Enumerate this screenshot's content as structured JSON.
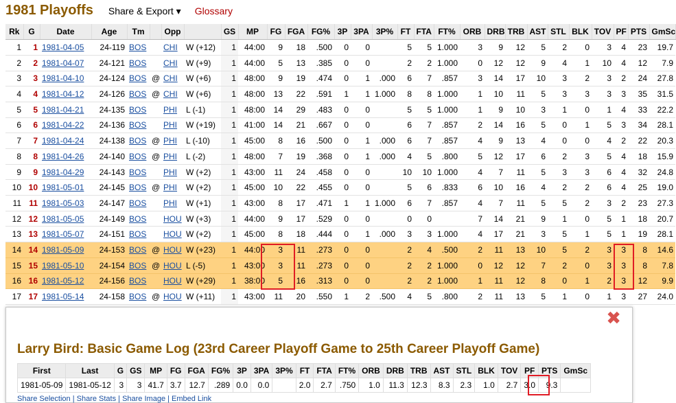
{
  "header": {
    "title": "1981 Playoffs",
    "share_label": "Share & Export ▾",
    "glossary_label": "Glossary"
  },
  "columns": [
    "Rk",
    "G",
    "Date",
    "Age",
    "Tm",
    "",
    "Opp",
    "",
    "GS",
    "MP",
    "FG",
    "FGA",
    "FG%",
    "3P",
    "3PA",
    "3P%",
    "FT",
    "FTA",
    "FT%",
    "ORB",
    "DRB",
    "TRB",
    "AST",
    "STL",
    "BLK",
    "TOV",
    "PF",
    "PTS",
    "GmSc"
  ],
  "rows": [
    [
      "1",
      "1",
      "1981-04-05",
      "24-119",
      "BOS",
      "",
      "CHI",
      "W (+12)",
      "1",
      "44:00",
      "9",
      "18",
      ".500",
      "0",
      "0",
      "",
      "5",
      "5",
      "1.000",
      "3",
      "9",
      "12",
      "5",
      "2",
      "0",
      "3",
      "4",
      "23",
      "19.7"
    ],
    [
      "2",
      "2",
      "1981-04-07",
      "24-121",
      "BOS",
      "",
      "CHI",
      "W (+9)",
      "1",
      "44:00",
      "5",
      "13",
      ".385",
      "0",
      "0",
      "",
      "2",
      "2",
      "1.000",
      "0",
      "12",
      "12",
      "9",
      "4",
      "1",
      "10",
      "4",
      "12",
      "7.9"
    ],
    [
      "3",
      "3",
      "1981-04-10",
      "24-124",
      "BOS",
      "@",
      "CHI",
      "W (+6)",
      "1",
      "48:00",
      "9",
      "19",
      ".474",
      "0",
      "1",
      ".000",
      "6",
      "7",
      ".857",
      "3",
      "14",
      "17",
      "10",
      "3",
      "2",
      "3",
      "2",
      "24",
      "27.8"
    ],
    [
      "4",
      "4",
      "1981-04-12",
      "24-126",
      "BOS",
      "@",
      "CHI",
      "W (+6)",
      "1",
      "48:00",
      "13",
      "22",
      ".591",
      "1",
      "1",
      "1.000",
      "8",
      "8",
      "1.000",
      "1",
      "10",
      "11",
      "5",
      "3",
      "3",
      "3",
      "3",
      "35",
      "31.5"
    ],
    [
      "5",
      "5",
      "1981-04-21",
      "24-135",
      "BOS",
      "",
      "PHI",
      "L (-1)",
      "1",
      "48:00",
      "14",
      "29",
      ".483",
      "0",
      "0",
      "",
      "5",
      "5",
      "1.000",
      "1",
      "9",
      "10",
      "3",
      "1",
      "0",
      "1",
      "4",
      "33",
      "22.2"
    ],
    [
      "6",
      "6",
      "1981-04-22",
      "24-136",
      "BOS",
      "",
      "PHI",
      "W (+19)",
      "1",
      "41:00",
      "14",
      "21",
      ".667",
      "0",
      "0",
      "",
      "6",
      "7",
      ".857",
      "2",
      "14",
      "16",
      "5",
      "0",
      "1",
      "5",
      "3",
      "34",
      "28.1"
    ],
    [
      "7",
      "7",
      "1981-04-24",
      "24-138",
      "BOS",
      "@",
      "PHI",
      "L (-10)",
      "1",
      "45:00",
      "8",
      "16",
      ".500",
      "0",
      "1",
      ".000",
      "6",
      "7",
      ".857",
      "4",
      "9",
      "13",
      "4",
      "0",
      "0",
      "4",
      "2",
      "22",
      "20.3"
    ],
    [
      "8",
      "8",
      "1981-04-26",
      "24-140",
      "BOS",
      "@",
      "PHI",
      "L (-2)",
      "1",
      "48:00",
      "7",
      "19",
      ".368",
      "0",
      "1",
      ".000",
      "4",
      "5",
      ".800",
      "5",
      "12",
      "17",
      "6",
      "2",
      "3",
      "5",
      "4",
      "18",
      "15.9"
    ],
    [
      "9",
      "9",
      "1981-04-29",
      "24-143",
      "BOS",
      "",
      "PHI",
      "W (+2)",
      "1",
      "43:00",
      "11",
      "24",
      ".458",
      "0",
      "0",
      "",
      "10",
      "10",
      "1.000",
      "4",
      "7",
      "11",
      "5",
      "3",
      "3",
      "6",
      "4",
      "32",
      "24.8"
    ],
    [
      "10",
      "10",
      "1981-05-01",
      "24-145",
      "BOS",
      "@",
      "PHI",
      "W (+2)",
      "1",
      "45:00",
      "10",
      "22",
      ".455",
      "0",
      "0",
      "",
      "5",
      "6",
      ".833",
      "6",
      "10",
      "16",
      "4",
      "2",
      "2",
      "6",
      "4",
      "25",
      "19.0"
    ],
    [
      "11",
      "11",
      "1981-05-03",
      "24-147",
      "BOS",
      "",
      "PHI",
      "W (+1)",
      "1",
      "43:00",
      "8",
      "17",
      ".471",
      "1",
      "1",
      "1.000",
      "6",
      "7",
      ".857",
      "4",
      "7",
      "11",
      "5",
      "5",
      "2",
      "3",
      "2",
      "23",
      "27.3"
    ],
    [
      "12",
      "12",
      "1981-05-05",
      "24-149",
      "BOS",
      "",
      "HOU",
      "W (+3)",
      "1",
      "44:00",
      "9",
      "17",
      ".529",
      "0",
      "0",
      "",
      "0",
      "0",
      "",
      "7",
      "14",
      "21",
      "9",
      "1",
      "0",
      "5",
      "1",
      "18",
      "20.7"
    ],
    [
      "13",
      "13",
      "1981-05-07",
      "24-151",
      "BOS",
      "",
      "HOU",
      "W (+2)",
      "1",
      "45:00",
      "8",
      "18",
      ".444",
      "0",
      "1",
      ".000",
      "3",
      "3",
      "1.000",
      "4",
      "17",
      "21",
      "3",
      "5",
      "1",
      "5",
      "1",
      "19",
      "28.1"
    ],
    [
      "14",
      "14",
      "1981-05-09",
      "24-153",
      "BOS",
      "@",
      "HOU",
      "W (+23)",
      "1",
      "44:00",
      "3",
      "11",
      ".273",
      "0",
      "0",
      "",
      "2",
      "4",
      ".500",
      "2",
      "11",
      "13",
      "10",
      "5",
      "2",
      "3",
      "3",
      "8",
      "14.6"
    ],
    [
      "15",
      "15",
      "1981-05-10",
      "24-154",
      "BOS",
      "@",
      "HOU",
      "L (-5)",
      "1",
      "43:00",
      "3",
      "11",
      ".273",
      "0",
      "0",
      "",
      "2",
      "2",
      "1.000",
      "0",
      "12",
      "12",
      "7",
      "2",
      "0",
      "3",
      "3",
      "8",
      "7.8"
    ],
    [
      "16",
      "16",
      "1981-05-12",
      "24-156",
      "BOS",
      "",
      "HOU",
      "W (+29)",
      "1",
      "38:00",
      "5",
      "16",
      ".313",
      "0",
      "0",
      "",
      "2",
      "2",
      "1.000",
      "1",
      "11",
      "12",
      "8",
      "0",
      "1",
      "2",
      "3",
      "12",
      "9.9"
    ],
    [
      "17",
      "17",
      "1981-05-14",
      "24-158",
      "BOS",
      "@",
      "HOU",
      "W (+11)",
      "1",
      "43:00",
      "11",
      "20",
      ".550",
      "1",
      "2",
      ".500",
      "4",
      "5",
      ".800",
      "2",
      "11",
      "13",
      "5",
      "1",
      "0",
      "1",
      "3",
      "27",
      "24.0"
    ]
  ],
  "highlighted_rows": [
    14,
    15,
    16
  ],
  "popup": {
    "close_icon": "close-icon",
    "title": "Larry Bird: Basic Game Log (23rd Career Playoff Game to 25th Career Playoff Game)",
    "columns": [
      "First",
      "Last",
      "G",
      "GS",
      "MP",
      "FG",
      "FGA",
      "FG%",
      "3P",
      "3PA",
      "3P%",
      "FT",
      "FTA",
      "FT%",
      "ORB",
      "DRB",
      "TRB",
      "AST",
      "STL",
      "BLK",
      "TOV",
      "PF",
      "PTS",
      "GmSc"
    ],
    "row": [
      "1981-05-09",
      "1981-05-12",
      "3",
      "3",
      "41.7",
      "3.7",
      "12.7",
      ".289",
      "0.0",
      "0.0",
      "",
      "2.0",
      "2.7",
      ".750",
      "1.0",
      "11.3",
      "12.3",
      "8.3",
      "2.3",
      "1.0",
      "2.7",
      "3.0",
      "9.3",
      ""
    ],
    "trail": "Share Selection  |  Share Stats  |  Share Image  |  Embed Link"
  }
}
